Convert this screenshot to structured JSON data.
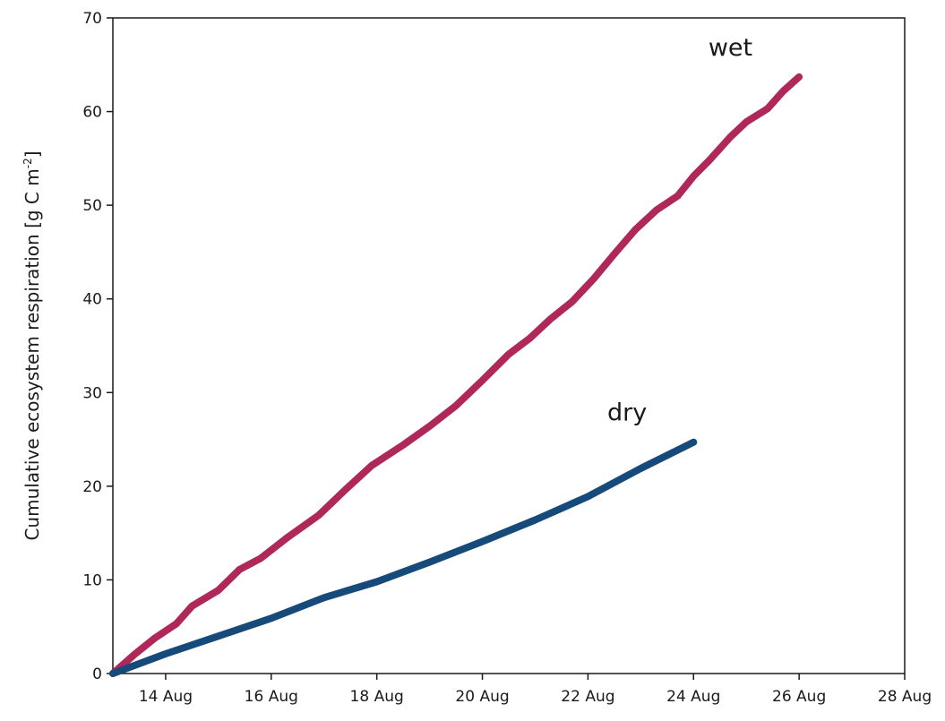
{
  "chart_data": {
    "type": "line",
    "title": "",
    "xlabel": "",
    "ylabel": "Cumulative ecosystem respiration [g C m",
    "ylabel_unit_exponent": "-2",
    "ylabel_close": "]",
    "x_unit": "days of August",
    "xlim": [
      13,
      28
    ],
    "ylim": [
      0,
      70
    ],
    "x_ticks": [
      {
        "value": 14,
        "label": "14 Aug"
      },
      {
        "value": 16,
        "label": "16 Aug"
      },
      {
        "value": 18,
        "label": "18 Aug"
      },
      {
        "value": 20,
        "label": "20 Aug"
      },
      {
        "value": 22,
        "label": "22 Aug"
      },
      {
        "value": 24,
        "label": "24 Aug"
      },
      {
        "value": 26,
        "label": "26 Aug"
      },
      {
        "value": 28,
        "label": "28 Aug"
      }
    ],
    "y_ticks": [
      0,
      10,
      20,
      30,
      40,
      50,
      60,
      70
    ],
    "grid": false,
    "legend": "inline labels at line ends",
    "series": [
      {
        "name": "wet",
        "color": "#b0285a",
        "points": [
          [
            13.0,
            0.0
          ],
          [
            13.4,
            2.0
          ],
          [
            13.8,
            3.8
          ],
          [
            14.2,
            5.3
          ],
          [
            14.5,
            7.2
          ],
          [
            15.0,
            8.9
          ],
          [
            15.4,
            11.1
          ],
          [
            15.8,
            12.3
          ],
          [
            16.3,
            14.5
          ],
          [
            16.9,
            16.9
          ],
          [
            17.4,
            19.6
          ],
          [
            17.9,
            22.2
          ],
          [
            18.5,
            24.4
          ],
          [
            19.0,
            26.4
          ],
          [
            19.5,
            28.6
          ],
          [
            20.0,
            31.3
          ],
          [
            20.5,
            34.1
          ],
          [
            20.9,
            35.8
          ],
          [
            21.3,
            37.9
          ],
          [
            21.7,
            39.7
          ],
          [
            22.1,
            42.1
          ],
          [
            22.5,
            44.8
          ],
          [
            22.9,
            47.4
          ],
          [
            23.3,
            49.5
          ],
          [
            23.7,
            51.0
          ],
          [
            24.0,
            53.1
          ],
          [
            24.3,
            54.8
          ],
          [
            24.7,
            57.3
          ],
          [
            25.0,
            58.9
          ],
          [
            25.4,
            60.3
          ],
          [
            25.7,
            62.2
          ],
          [
            26.0,
            63.7
          ]
        ]
      },
      {
        "name": "dry",
        "color": "#154a7a",
        "points": [
          [
            13.0,
            0.0
          ],
          [
            14.0,
            2.1
          ],
          [
            15.0,
            4.0
          ],
          [
            16.0,
            5.9
          ],
          [
            17.0,
            8.1
          ],
          [
            18.0,
            9.8
          ],
          [
            19.0,
            11.9
          ],
          [
            20.0,
            14.1
          ],
          [
            21.0,
            16.4
          ],
          [
            22.0,
            18.9
          ],
          [
            23.0,
            21.9
          ],
          [
            24.0,
            24.7
          ]
        ]
      }
    ]
  }
}
